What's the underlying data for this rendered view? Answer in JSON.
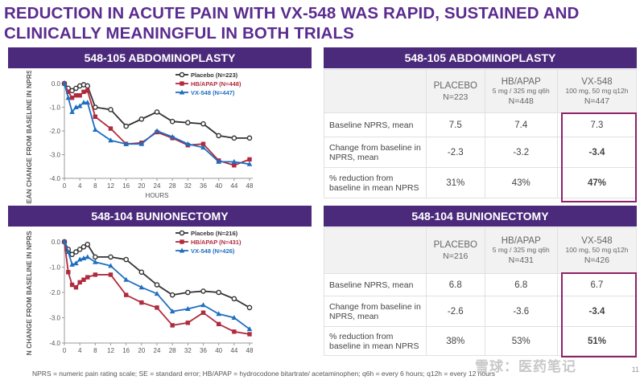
{
  "title": "REDUCTION IN ACUTE PAIN WITH VX-548 WAS RAPID, SUSTAINED AND CLINICALLY MEANINGFUL IN BOTH TRIALS",
  "footnote": "NPRS = numeric pain rating scale; SE = standard error; HB/APAP = hydrocodone bitartrate/ acetaminophen; q6h = every 6 hours; q12h = every 12 hours",
  "page_number": "11",
  "watermark": "雪球：医药笔记",
  "colors": {
    "placebo": "#333333",
    "hb": "#b02a3e",
    "vx": "#1f6fc0",
    "banner": "#4b2a7b",
    "title": "#5b2c8f",
    "highlight": "#8e2266"
  },
  "chart_data": [
    {
      "type": "line",
      "title": "548-105 ABDOMINOPLASTY",
      "xlabel": "HOURS",
      "ylabel": "MEAN CHANGE FROM BASELINE IN NPRS ± SE",
      "xticks": [
        0,
        4,
        8,
        12,
        16,
        20,
        24,
        28,
        32,
        36,
        40,
        44,
        48
      ],
      "yticks": [
        0,
        -1,
        -2,
        -3,
        -4
      ],
      "ytick_labels": [
        "0.0",
        "-1.0",
        "-2.0",
        "-3.0",
        "-4.0"
      ],
      "xlim": [
        0,
        48
      ],
      "ylim": [
        -4,
        0
      ],
      "x": [
        0,
        1,
        2,
        3,
        4,
        5,
        6,
        8,
        12,
        16,
        20,
        24,
        28,
        32,
        36,
        40,
        44,
        48
      ],
      "series": [
        {
          "name": "Placebo (N=223)",
          "color_key": "placebo",
          "marker": "circle",
          "values": [
            0,
            -0.2,
            -0.3,
            -0.2,
            -0.1,
            -0.05,
            -0.1,
            -1.0,
            -1.1,
            -1.8,
            -1.5,
            -1.2,
            -1.6,
            -1.65,
            -1.7,
            -2.2,
            -2.3,
            -2.3
          ]
        },
        {
          "name": "HB/APAP (N=448)",
          "color_key": "hb",
          "marker": "square",
          "values": [
            0,
            -0.35,
            -0.6,
            -0.5,
            -0.5,
            -0.35,
            -0.3,
            -1.4,
            -1.9,
            -2.55,
            -2.5,
            -2.05,
            -2.3,
            -2.6,
            -2.55,
            -3.25,
            -3.45,
            -3.2
          ]
        },
        {
          "name": "VX-548 (N=447)",
          "color_key": "vx",
          "marker": "triangle",
          "values": [
            0,
            -0.6,
            -1.2,
            -1.0,
            -0.95,
            -0.8,
            -0.8,
            -1.95,
            -2.4,
            -2.55,
            -2.55,
            -2.0,
            -2.25,
            -2.55,
            -2.7,
            -3.3,
            -3.3,
            -3.4
          ]
        }
      ]
    },
    {
      "type": "line",
      "title": "548-104 BUNIONECTOMY",
      "xlabel": "HOURS",
      "ylabel": "MEAN CHANGE FROM BASELINE IN NPRS ± SE",
      "xticks": [
        0,
        4,
        8,
        12,
        16,
        20,
        24,
        28,
        32,
        36,
        40,
        44,
        48
      ],
      "yticks": [
        0,
        -1,
        -2,
        -3,
        -4
      ],
      "ytick_labels": [
        "0.0",
        "-1.0",
        "-2.0",
        "-3.0",
        "-4.0"
      ],
      "xlim": [
        0,
        48
      ],
      "ylim": [
        -4,
        0
      ],
      "x": [
        0,
        1,
        2,
        3,
        4,
        5,
        6,
        8,
        12,
        16,
        20,
        24,
        28,
        32,
        36,
        40,
        44,
        48
      ],
      "series": [
        {
          "name": "Placebo (N=216)",
          "color_key": "placebo",
          "marker": "circle",
          "values": [
            0,
            -0.3,
            -0.5,
            -0.4,
            -0.3,
            -0.2,
            -0.1,
            -0.6,
            -0.6,
            -0.7,
            -1.2,
            -1.7,
            -2.1,
            -2.0,
            -1.95,
            -2.0,
            -2.25,
            -2.6
          ]
        },
        {
          "name": "HB/APAP (N=431)",
          "color_key": "hb",
          "marker": "square",
          "values": [
            0,
            -1.2,
            -1.7,
            -1.8,
            -1.6,
            -1.5,
            -1.4,
            -1.3,
            -1.3,
            -2.1,
            -2.4,
            -2.6,
            -3.3,
            -3.2,
            -2.8,
            -3.25,
            -3.55,
            -3.65
          ]
        },
        {
          "name": "VX-548 (N=426)",
          "color_key": "vx",
          "marker": "triangle",
          "values": [
            0,
            -0.4,
            -0.9,
            -0.85,
            -0.7,
            -0.65,
            -0.6,
            -0.8,
            -0.95,
            -1.5,
            -1.8,
            -2.05,
            -2.75,
            -2.65,
            -2.5,
            -2.85,
            -3.0,
            -3.45
          ]
        }
      ]
    }
  ],
  "tables": [
    {
      "title": "548-105 ABDOMINOPLASTY",
      "columns": [
        {
          "name": "PLACEBO",
          "dose": "",
          "n": "N=223"
        },
        {
          "name": "HB/APAP",
          "dose": "5 mg / 325 mg q6h",
          "n": "N=448"
        },
        {
          "name": "VX-548",
          "dose": "100 mg, 50 mg q12h",
          "n": "N=447"
        }
      ],
      "rows": [
        {
          "label": "Baseline NPRS, mean",
          "values": [
            "7.5",
            "7.4",
            "7.3"
          ]
        },
        {
          "label": "Change from baseline in NPRS, mean",
          "values": [
            "-2.3",
            "-3.2",
            "-3.4"
          ]
        },
        {
          "label": "% reduction from baseline in mean NPRS",
          "values": [
            "31%",
            "43%",
            "47%"
          ]
        }
      ]
    },
    {
      "title": "548-104 BUNIONECTOMY",
      "columns": [
        {
          "name": "PLACEBO",
          "dose": "",
          "n": "N=216"
        },
        {
          "name": "HB/APAP",
          "dose": "5 mg / 325 mg q6h",
          "n": "N=431"
        },
        {
          "name": "VX-548",
          "dose": "100 mg, 50 mg q12h",
          "n": "N=426"
        }
      ],
      "rows": [
        {
          "label": "Baseline NPRS, mean",
          "values": [
            "6.8",
            "6.8",
            "6.7"
          ]
        },
        {
          "label": "Change from baseline in NPRS, mean",
          "values": [
            "-2.6",
            "-3.6",
            "-3.4"
          ]
        },
        {
          "label": "% reduction from baseline in mean NPRS",
          "values": [
            "38%",
            "53%",
            "51%"
          ]
        }
      ]
    }
  ]
}
